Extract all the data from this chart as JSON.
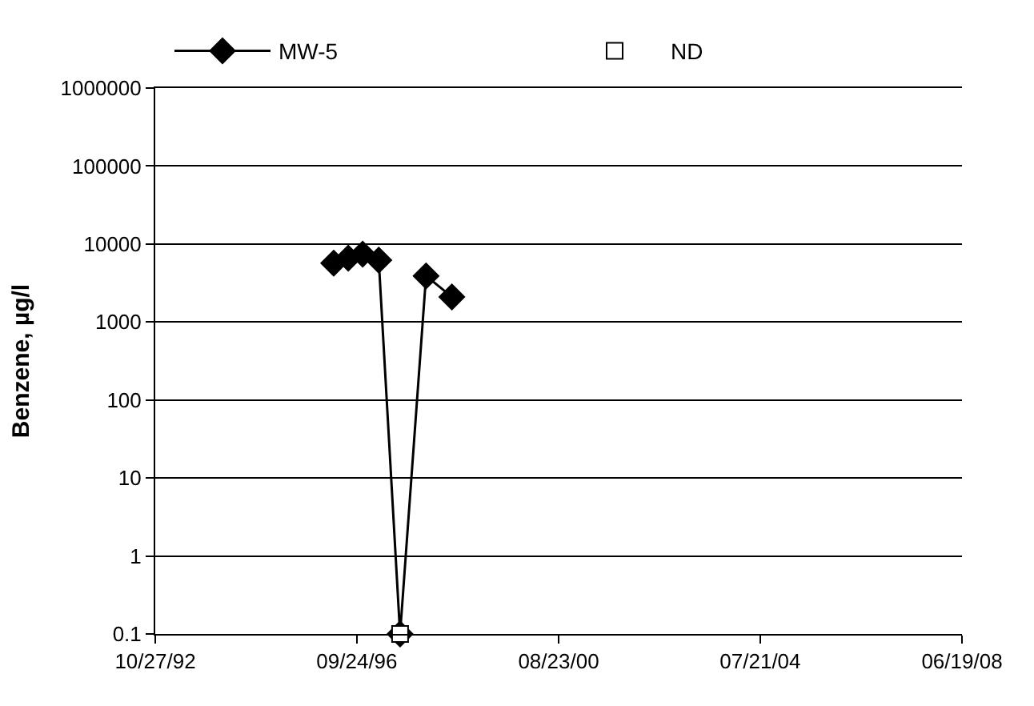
{
  "chart_data": {
    "type": "line",
    "ylabel": "Benzene, µg/l",
    "log": "y",
    "grid": "y",
    "legend": "top",
    "xlim": [
      "1992-10-27",
      "2008-06-19"
    ],
    "xticks": [
      {
        "value": "1992-10-27",
        "label": "10/27/92"
      },
      {
        "value": "1996-09-24",
        "label": "09/24/96"
      },
      {
        "value": "2000-08-23",
        "label": "08/23/00"
      },
      {
        "value": "2004-07-21",
        "label": "07/21/04"
      },
      {
        "value": "2008-06-19",
        "label": "06/19/08"
      }
    ],
    "ylim": [
      0.1,
      1000000
    ],
    "yticks": [
      0.1,
      1,
      10,
      100,
      1000,
      10000,
      100000,
      1000000
    ],
    "series": [
      {
        "name": "MW-5",
        "color": "#000000",
        "marker": "diamond",
        "x": [
          "1996-04-13",
          "1996-07-25",
          "1996-11-04",
          "1997-02-26",
          "1997-07-27",
          "1998-01-27",
          "1998-07-29"
        ],
        "values": [
          5700,
          6600,
          7400,
          6200,
          0.1,
          3900,
          2100
        ]
      },
      {
        "name": "ND",
        "type": "scatter",
        "color": "#ffffff",
        "marker": "square",
        "x": [
          "1997-07-27"
        ],
        "values": [
          0.1
        ]
      }
    ]
  }
}
